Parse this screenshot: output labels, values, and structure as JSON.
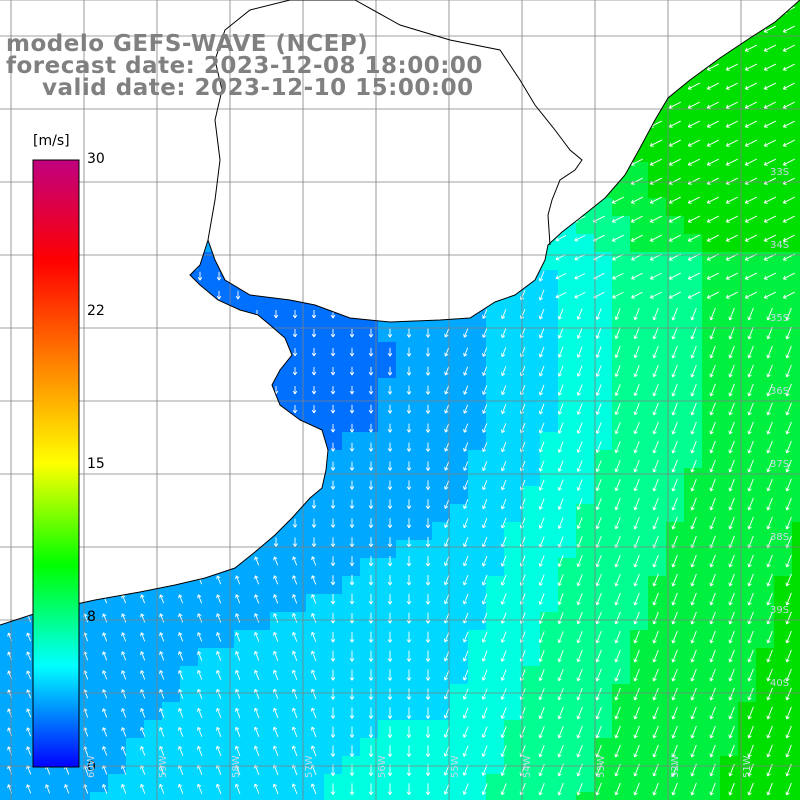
{
  "title": {
    "model": "modelo GEFS-WAVE (NCEP)",
    "forecast": "forecast date: 2023-12-08 18:00:00",
    "valid": "valid date: 2023-12-10 15:00:00"
  },
  "colorbar": {
    "unit": "[m/s]",
    "ticks": [
      "30",
      "22",
      "15",
      "8",
      "0"
    ],
    "stops": [
      "#0000ff",
      "#00ffff",
      "#00ff00",
      "#ffff00",
      "#ff8000",
      "#ff0000",
      "#c00080"
    ]
  },
  "grid": {
    "lon_labels": [
      "60W",
      "59W",
      "58W",
      "57W",
      "56W",
      "55W",
      "54W",
      "53W",
      "52W",
      "51W"
    ],
    "lat_labels": [
      "33S",
      "34S",
      "35S",
      "36S",
      "37S",
      "38S",
      "39S",
      "40S"
    ]
  },
  "colors": {
    "weak": "#0040ff",
    "moderate": "#00c8ff",
    "strong": "#00e800",
    "land": "#ffffff",
    "coast": "#000000",
    "grid": "#808080",
    "arrow": "#ffffff"
  }
}
